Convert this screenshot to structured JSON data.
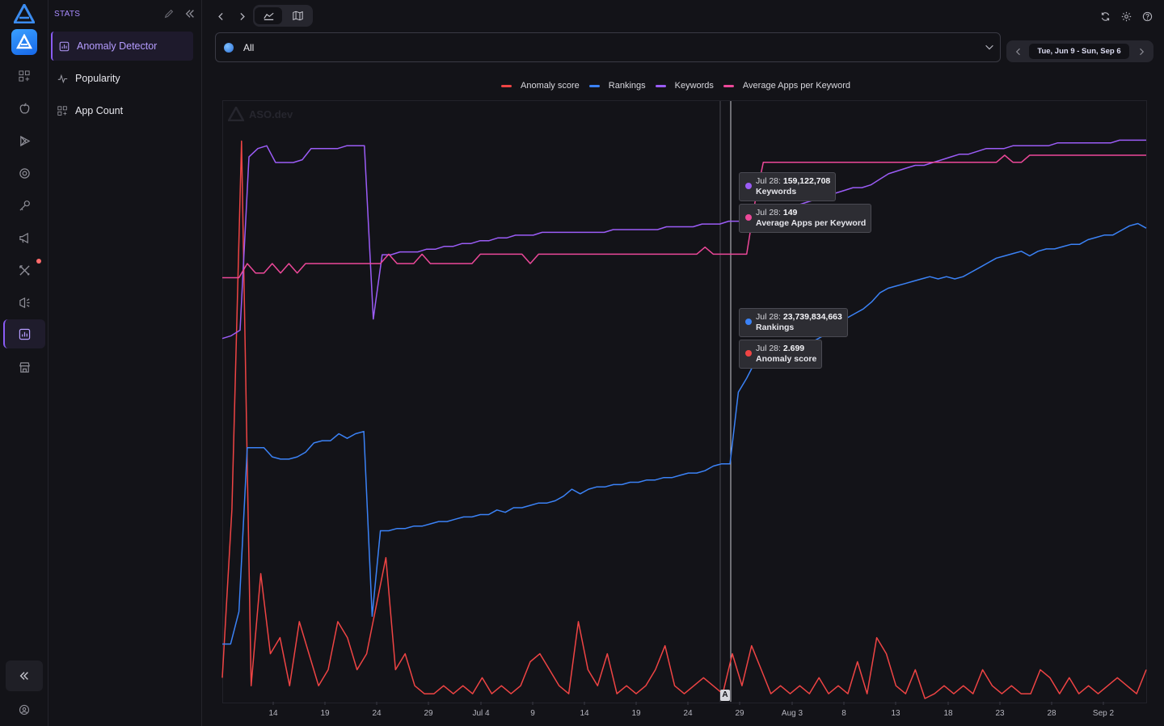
{
  "rail": {
    "items": [
      {
        "name": "apps-icon"
      },
      {
        "name": "apple-icon"
      },
      {
        "name": "play-store-icon"
      },
      {
        "name": "target-icon"
      },
      {
        "name": "key-icon"
      },
      {
        "name": "megaphone-icon"
      },
      {
        "name": "tools-icon"
      },
      {
        "name": "ads-icon"
      },
      {
        "name": "stats-icon"
      },
      {
        "name": "store-icon"
      }
    ],
    "collapse_icon": "double-chevron-left-icon",
    "account_icon": "user-circle-icon"
  },
  "sidebar": {
    "section_title": "STATS",
    "items": [
      {
        "label": "Anomaly Detector",
        "icon": "chart-box-icon",
        "active": true
      },
      {
        "label": "Popularity",
        "icon": "pulse-icon",
        "active": false
      },
      {
        "label": "App Count",
        "icon": "grid-plus-icon",
        "active": false
      }
    ]
  },
  "toolbar": {
    "back_icon": "chevron-left-icon",
    "forward_icon": "chevron-right-icon",
    "views": [
      "line-chart-view",
      "map-view"
    ],
    "right_icons": [
      "refresh-icon",
      "gear-icon",
      "help-icon"
    ]
  },
  "filter": {
    "country_value": "All"
  },
  "date_range": {
    "label": "Tue, Jun 9 - Sun, Sep 6"
  },
  "watermark": "ASO.dev",
  "annotation_label": "A",
  "colors": {
    "anomaly": "#ef4444",
    "rankings": "#3b82f6",
    "keywords": "#9b5cf6",
    "avg_apps": "#ec4899",
    "accent": "#8a5cf6"
  },
  "chart_data": {
    "type": "line",
    "legend_position": "top-center",
    "x_tick_labels": [
      "14",
      "19",
      "24",
      "29",
      "Jul 4",
      "9",
      "14",
      "19",
      "24",
      "29",
      "Aug 3",
      "8",
      "13",
      "18",
      "23",
      "28",
      "Sep 2"
    ],
    "series": [
      {
        "name": "Anomaly score",
        "color": "#ef4444",
        "values": [
          0.15,
          1.2,
          3.5,
          0.1,
          0.8,
          0.3,
          0.4,
          0.1,
          0.5,
          0.3,
          0.1,
          0.2,
          0.5,
          0.4,
          0.2,
          0.3,
          0.6,
          0.9,
          0.2,
          0.3,
          0.1,
          0.05,
          0.05,
          0.1,
          0.05,
          0.1,
          0.05,
          0.15,
          0.05,
          0.1,
          0.05,
          0.1,
          0.25,
          0.3,
          0.2,
          0.1,
          0.05,
          0.5,
          0.2,
          0.1,
          0.3,
          0.05,
          0.1,
          0.05,
          0.1,
          0.2,
          0.35,
          0.1,
          0.05,
          0.1,
          0.15,
          0.1,
          0.05,
          0.3,
          0.1,
          0.35,
          0.2,
          0.05,
          0.1,
          0.05,
          0.1,
          0.05,
          0.15,
          0.05,
          0.1,
          0.05,
          0.25,
          0.05,
          0.4,
          0.3,
          0.1,
          0.05,
          0.2,
          0.02,
          0.05,
          0.1,
          0.05,
          0.1,
          0.05,
          0.2,
          0.1,
          0.05,
          0.1,
          0.05,
          0.05,
          0.2,
          0.15,
          0.05,
          0.15,
          0.05,
          0.1,
          0.05,
          0.1,
          0.15,
          0.1,
          0.05,
          0.2
        ]
      },
      {
        "name": "Rankings",
        "color": "#3b82f6",
        "values": [
          2.5,
          2.5,
          3.9,
          11,
          11,
          11,
          10.6,
          10.5,
          10.5,
          10.6,
          10.8,
          11.2,
          11.3,
          11.3,
          11.6,
          11.4,
          11.6,
          11.7,
          3.7,
          7.4,
          7.4,
          7.5,
          7.5,
          7.6,
          7.6,
          7.7,
          7.8,
          7.8,
          7.9,
          8.0,
          8.0,
          8.1,
          8.1,
          8.3,
          8.2,
          8.4,
          8.4,
          8.5,
          8.6,
          8.6,
          8.7,
          8.9,
          9.2,
          9.0,
          9.2,
          9.3,
          9.3,
          9.4,
          9.4,
          9.5,
          9.5,
          9.6,
          9.6,
          9.7,
          9.7,
          9.8,
          9.9,
          9.9,
          10.0,
          10.2,
          10.3,
          10.3,
          13.4,
          14,
          14.7,
          14.8,
          14.8,
          15,
          15.0,
          15.2,
          15.4,
          15.6,
          15.8,
          16.0,
          16.4,
          16.6,
          16.8,
          17.0,
          17.3,
          17.7,
          17.9,
          18.0,
          18.1,
          18.2,
          18.3,
          18.4,
          18.3,
          18.4,
          18.3,
          18.4,
          18.6,
          18.8,
          19.0,
          19.2,
          19.3,
          19.4,
          19.5,
          19.3,
          19.5,
          19.6,
          19.6,
          19.7,
          19.8,
          19.8,
          20.0,
          20.1,
          20.2,
          20.2,
          20.4,
          20.6,
          20.7,
          20.5
        ]
      },
      {
        "name": "Keywords",
        "color": "#9b5cf6",
        "values": [
          130,
          131,
          133,
          195,
          198,
          199,
          193,
          193,
          193,
          194,
          198,
          198,
          198,
          198,
          199,
          199,
          199,
          137,
          160,
          160,
          161,
          161,
          161,
          162,
          162,
          163,
          163,
          164,
          164,
          165,
          165,
          166,
          166,
          167,
          167,
          167,
          168,
          168,
          168,
          168,
          168,
          168,
          168,
          168,
          169,
          169,
          169,
          169,
          169,
          169,
          170,
          170,
          170,
          170,
          171,
          171,
          171,
          172,
          172,
          172,
          172,
          173,
          171,
          175,
          176,
          178,
          179,
          180,
          181,
          182,
          183,
          184,
          184,
          185,
          187,
          189,
          190,
          191,
          192,
          192,
          193,
          194,
          195,
          196,
          196,
          197,
          198,
          198,
          198,
          199,
          199,
          199,
          199,
          199,
          200,
          200,
          200,
          200,
          200,
          200,
          200,
          201,
          201,
          201,
          201
        ]
      },
      {
        "name": "Average Apps per Keyword",
        "color": "#ec4899",
        "values": [
          100,
          100,
          100,
          106,
          102,
          102,
          106,
          102,
          106,
          102,
          106,
          106,
          106,
          106,
          106,
          106,
          106,
          106,
          106,
          106,
          110,
          106,
          106,
          106,
          110,
          106,
          106,
          106,
          106,
          106,
          106,
          110,
          110,
          110,
          110,
          110,
          110,
          106,
          110,
          110,
          110,
          110,
          110,
          110,
          110,
          110,
          110,
          110,
          110,
          110,
          110,
          110,
          110,
          110,
          110,
          110,
          110,
          110,
          113,
          110,
          110,
          110,
          110,
          110,
          132,
          149,
          149,
          149,
          149,
          149,
          149,
          149,
          149,
          149,
          149,
          149,
          149,
          149,
          149,
          149,
          149,
          149,
          149,
          149,
          149,
          149,
          149,
          149,
          149,
          149,
          149,
          149,
          149,
          149,
          152,
          149,
          149,
          152,
          152,
          152,
          152,
          152,
          152,
          152,
          152,
          152,
          152,
          152,
          152,
          152,
          152,
          152
        ]
      }
    ],
    "hover": {
      "date": "Jul 28",
      "keywords": {
        "prefix": "Jul 28: ",
        "value": "159,122,708",
        "name": "Keywords"
      },
      "avg_apps": {
        "prefix": "Jul 28: ",
        "value": "149",
        "name": "Average Apps per Keyword"
      },
      "rankings": {
        "prefix": "Jul 28: ",
        "value": "23,739,834,663",
        "name": "Rankings"
      },
      "anomaly": {
        "prefix": "Jul 28: ",
        "value": "2.699",
        "name": "Anomaly score"
      }
    }
  }
}
